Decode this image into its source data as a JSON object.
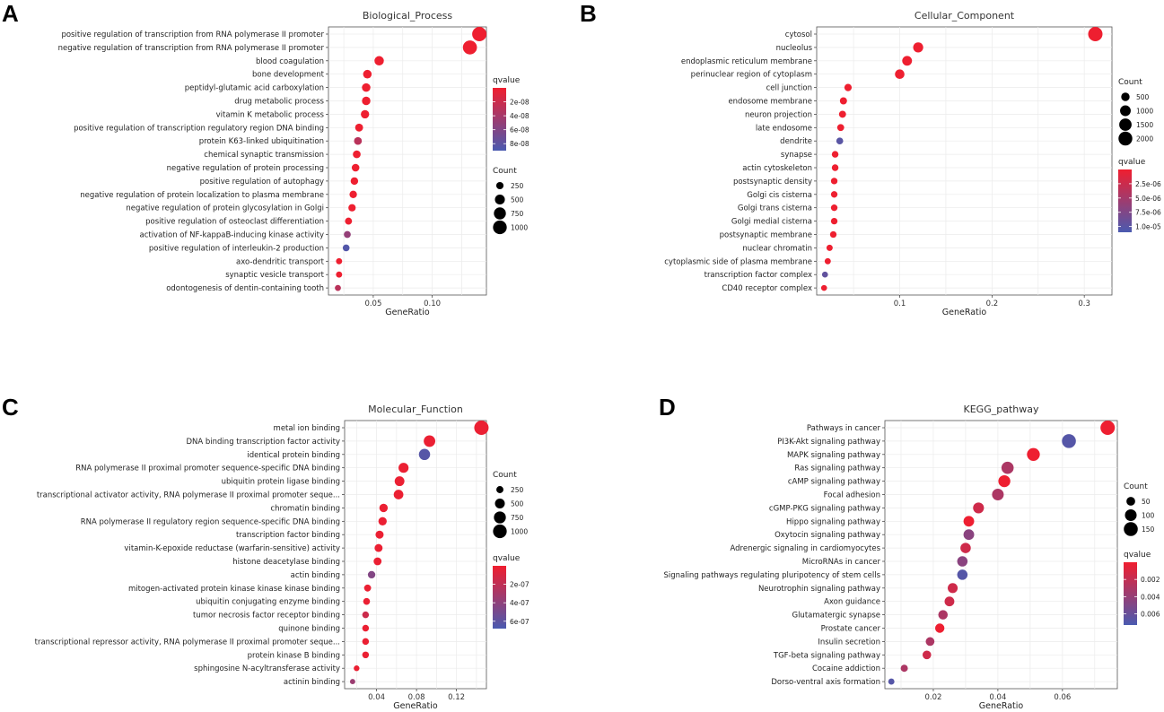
{
  "panel_labels": [
    "A",
    "B",
    "C",
    "D"
  ],
  "color_scale": {
    "low_color": "#f01e2f",
    "high_color": "#4a5ab0"
  },
  "chart_data": [
    {
      "type": "scatter",
      "title": "Biological_Process",
      "xlabel": "GeneRatio",
      "ylabel": "",
      "xlim": [
        0.012,
        0.146
      ],
      "xticks": [
        0.05,
        0.1
      ],
      "xtick_labels": [
        "0.05",
        "0.10"
      ],
      "categories": [
        "positive regulation of transcription from RNA polymerase II promoter",
        "negative regulation of transcription from RNA polymerase II promoter",
        "blood coagulation",
        "bone development",
        "peptidyl-glutamic acid carboxylation",
        "drug metabolic process",
        "vitamin K metabolic process",
        "positive regulation of transcription regulatory region DNA binding",
        "protein K63-linked ubiquitination",
        "chemical synaptic transmission",
        "negative regulation of protein processing",
        "positive regulation of autophagy",
        "negative regulation of protein localization to plasma membrane",
        "negative regulation of protein glycosylation in Golgi",
        "positive regulation of osteoclast differentiation",
        "activation of NF-kappaB-inducing kinase activity",
        "positive regulation of interleukin-2 production",
        "axo-dendritic transport",
        "synaptic vesicle transport",
        "odontogenesis of dentin-containing tooth"
      ],
      "x": [
        0.14,
        0.132,
        0.055,
        0.045,
        0.044,
        0.044,
        0.043,
        0.038,
        0.037,
        0.036,
        0.035,
        0.034,
        0.033,
        0.032,
        0.029,
        0.028,
        0.027,
        0.021,
        0.021,
        0.02
      ],
      "count": [
        1100,
        1050,
        440,
        360,
        350,
        350,
        340,
        300,
        290,
        285,
        280,
        270,
        265,
        255,
        230,
        220,
        215,
        170,
        170,
        160
      ],
      "qvalue": [
        1e-09,
        1e-09,
        1e-09,
        1e-09,
        1e-09,
        1e-09,
        1e-09,
        1e-09,
        3e-08,
        1e-09,
        1e-09,
        1e-09,
        1e-09,
        1e-09,
        1e-09,
        5e-08,
        8.5e-08,
        1e-09,
        1e-09,
        3e-08
      ],
      "count_legend": {
        "title": "Count",
        "values": [
          250,
          500,
          750,
          1000
        ],
        "labels": [
          "250",
          "500",
          "750",
          "1000"
        ]
      },
      "qvalue_legend": {
        "title": "qvalue",
        "range": [
          0,
          9e-08
        ],
        "ticks": [
          2e-08,
          4e-08,
          6e-08,
          8e-08
        ],
        "labels": [
          "2e-08",
          "4e-08",
          "6e-08",
          "8e-08"
        ]
      },
      "legend_order": [
        "qvalue",
        "count"
      ]
    },
    {
      "type": "scatter",
      "title": "Cellular_Component",
      "xlabel": "GeneRatio",
      "ylabel": "",
      "xlim": [
        0.01,
        0.33
      ],
      "xticks": [
        0.1,
        0.2,
        0.3
      ],
      "xtick_labels": [
        "0.1",
        "0.2",
        "0.3"
      ],
      "categories": [
        "cytosol",
        "nucleolus",
        "endoplasmic reticulum membrane",
        "perinuclear region of cytoplasm",
        "cell junction",
        "endosome membrane",
        "neuron projection",
        "late endosome",
        "dendrite",
        "synapse",
        "actin cytoskeleton",
        "postsynaptic density",
        "Golgi cis cisterna",
        "Golgi trans cisterna",
        "Golgi medial cisterna",
        "postsynaptic membrane",
        "nuclear chromatin",
        "cytoplasmic side of plasma membrane",
        "transcription factor complex",
        "CD40 receptor complex"
      ],
      "x": [
        0.312,
        0.12,
        0.108,
        0.1,
        0.044,
        0.039,
        0.038,
        0.036,
        0.035,
        0.03,
        0.03,
        0.029,
        0.029,
        0.029,
        0.029,
        0.028,
        0.024,
        0.022,
        0.019,
        0.018
      ],
      "count": [
        2200,
        850,
        780,
        720,
        320,
        290,
        280,
        265,
        260,
        225,
        225,
        215,
        215,
        215,
        215,
        210,
        180,
        170,
        150,
        140
      ],
      "qvalue": [
        1e-07,
        1e-07,
        1e-07,
        1e-07,
        1e-07,
        1e-07,
        1e-07,
        1e-07,
        1e-05,
        1e-07,
        1e-07,
        1e-07,
        1e-07,
        1e-07,
        1e-07,
        1e-07,
        1e-07,
        1e-07,
        9.5e-06,
        1e-07
      ],
      "count_legend": {
        "title": "Count",
        "values": [
          500,
          1000,
          1500,
          2000
        ],
        "labels": [
          "500",
          "1000",
          "1500",
          "2000"
        ]
      },
      "qvalue_legend": {
        "title": "qvalue",
        "range": [
          0,
          1.1e-05
        ],
        "ticks": [
          2.5e-06,
          5e-06,
          7.5e-06,
          1e-05
        ],
        "labels": [
          "2.5e-06",
          "5.0e-06",
          "7.5e-06",
          "1.0e-05"
        ]
      },
      "legend_order": [
        "count",
        "qvalue"
      ]
    },
    {
      "type": "scatter",
      "title": "Molecular_Function",
      "xlabel": "GeneRatio",
      "ylabel": "",
      "xlim": [
        0.008,
        0.15
      ],
      "xticks": [
        0.04,
        0.08,
        0.12
      ],
      "xtick_labels": [
        "0.04",
        "0.08",
        "0.12"
      ],
      "categories": [
        "metal ion binding",
        "DNA binding transcription factor activity",
        "identical protein binding",
        "RNA polymerase II proximal promoter sequence-specific DNA binding",
        "ubiquitin protein ligase binding",
        "transcriptional activator activity, RNA polymerase II proximal promoter seque...",
        "chromatin binding",
        "RNA polymerase II regulatory region sequence-specific DNA binding",
        "transcription factor binding",
        "vitamin-K-epoxide reductase (warfarin-sensitive) activity",
        "histone deacetylase binding",
        "actin binding",
        "mitogen-activated protein kinase kinase kinase binding",
        "ubiquitin conjugating enzyme binding",
        "tumor necrosis factor receptor binding",
        "quinone binding",
        "transcriptional repressor activity, RNA polymerase II proximal promoter seque...",
        "protein kinase B binding",
        "sphingosine N-acyltransferase activity",
        "actinin binding"
      ],
      "x": [
        0.145,
        0.093,
        0.088,
        0.067,
        0.063,
        0.062,
        0.047,
        0.046,
        0.043,
        0.042,
        0.041,
        0.035,
        0.031,
        0.03,
        0.029,
        0.029,
        0.029,
        0.029,
        0.02,
        0.016
      ],
      "count": [
        1100,
        700,
        660,
        520,
        490,
        480,
        360,
        350,
        330,
        320,
        315,
        275,
        240,
        230,
        220,
        220,
        220,
        220,
        155,
        130
      ],
      "qvalue": [
        2e-08,
        2e-08,
        6.3e-07,
        2e-08,
        2e-08,
        2e-08,
        2e-08,
        2e-08,
        2e-08,
        2e-08,
        2e-08,
        4.5e-07,
        2e-08,
        2e-08,
        1.5e-07,
        2e-08,
        2e-08,
        2e-08,
        2e-08,
        3.5e-07
      ],
      "count_legend": {
        "title": "Count",
        "values": [
          250,
          500,
          750,
          1000
        ],
        "labels": [
          "250",
          "500",
          "750",
          "1000"
        ]
      },
      "qvalue_legend": {
        "title": "qvalue",
        "range": [
          0,
          6.8e-07
        ],
        "ticks": [
          2e-07,
          4e-07,
          6e-07
        ],
        "labels": [
          "2e-07",
          "4e-07",
          "6e-07"
        ]
      },
      "legend_order": [
        "count",
        "qvalue"
      ]
    },
    {
      "type": "scatter",
      "title": "KEGG_pathway",
      "xlabel": "GeneRatio",
      "ylabel": "",
      "xlim": [
        0.005,
        0.077
      ],
      "xticks": [
        0.02,
        0.04,
        0.06
      ],
      "xtick_labels": [
        "0.02",
        "0.04",
        "0.06"
      ],
      "categories": [
        "Pathways in cancer",
        "PI3K-Akt signaling pathway",
        "MAPK signaling pathway",
        "Ras signaling pathway",
        "cAMP signaling pathway",
        "Focal adhesion",
        "cGMP-PKG signaling pathway",
        "Hippo signaling pathway",
        "Oxytocin signaling pathway",
        "Adrenergic signaling in cardiomyocytes",
        "MicroRNAs in cancer",
        "Signaling pathways regulating pluripotency of stem cells",
        "Neurotrophin signaling pathway",
        "Axon guidance",
        "Glutamatergic synapse",
        "Prostate cancer",
        "Insulin secretion",
        "TGF-beta signaling pathway",
        "Cocaine addiction",
        "Dorso-ventral axis formation"
      ],
      "x": [
        0.074,
        0.062,
        0.051,
        0.043,
        0.042,
        0.04,
        0.034,
        0.031,
        0.031,
        0.03,
        0.029,
        0.029,
        0.026,
        0.025,
        0.023,
        0.022,
        0.019,
        0.018,
        0.011,
        0.007
      ],
      "count": [
        160,
        150,
        125,
        110,
        105,
        100,
        85,
        80,
        80,
        75,
        75,
        75,
        68,
        65,
        60,
        58,
        50,
        48,
        30,
        20
      ],
      "qvalue": [
        0.0001,
        0.0068,
        0.0001,
        0.003,
        0.0001,
        0.003,
        0.0015,
        0.0001,
        0.0045,
        0.0015,
        0.0045,
        0.0068,
        0.0015,
        0.0015,
        0.003,
        0.0001,
        0.003,
        0.0015,
        0.003,
        0.0068
      ],
      "count_legend": {
        "title": "Count",
        "values": [
          50,
          100,
          150
        ],
        "labels": [
          "50",
          "100",
          "150"
        ]
      },
      "qvalue_legend": {
        "title": "qvalue",
        "range": [
          0,
          0.0073
        ],
        "ticks": [
          0.002,
          0.004,
          0.006
        ],
        "labels": [
          "0.002",
          "0.004",
          "0.006"
        ]
      },
      "legend_order": [
        "count",
        "qvalue"
      ]
    }
  ]
}
